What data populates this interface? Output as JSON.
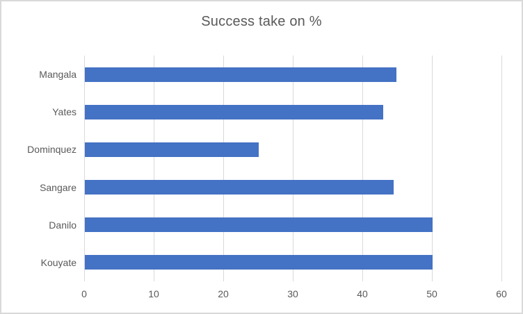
{
  "window": {
    "background": "#ffffff",
    "border_color": "#d9d9d9"
  },
  "chart_data": {
    "type": "bar",
    "orientation": "horizontal",
    "title": "Success take on %",
    "categories": [
      "Mangala",
      "Yates",
      "Dominquez",
      "Sangare",
      "Danilo",
      "Kouyate"
    ],
    "values": [
      44.8,
      42.9,
      25,
      44.4,
      50,
      50
    ],
    "xlabel": "",
    "ylabel": "",
    "xlim": [
      0,
      60
    ],
    "xticks": [
      0,
      10,
      20,
      30,
      40,
      50,
      60
    ],
    "grid": "vertical-gridlines-only",
    "legend": "none",
    "bar_color": "#4472c4",
    "gridline_color": "#d9d9d9",
    "text_color": "#595959"
  }
}
